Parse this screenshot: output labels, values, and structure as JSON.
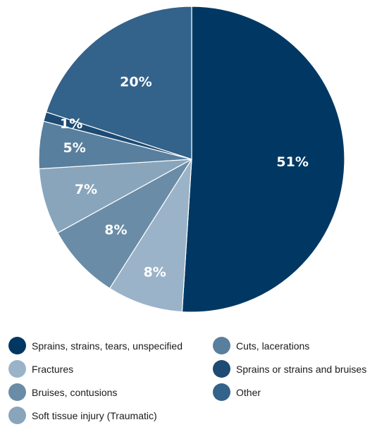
{
  "chart_data": {
    "type": "pie",
    "categories": [
      "Sprains, strains, tears, unspecified",
      "Fractures",
      "Bruises, contusions",
      "Soft tissue injury (Traumatic)",
      "Cuts, lacerations",
      "Sprains or strains and bruises",
      "Other"
    ],
    "values": [
      51,
      8,
      8,
      7,
      5,
      1,
      20
    ],
    "data_labels": [
      "51%",
      "8%",
      "8%",
      "7%",
      "5%",
      "1%",
      "20%"
    ],
    "colors": [
      "#003863",
      "#9ab3c8",
      "#6a8ca6",
      "#89a5bc",
      "#587f9e",
      "#1d4b73",
      "#33628a"
    ],
    "start": "12 o'clock",
    "direction": "clockwise",
    "legend_position": "bottom",
    "title": ""
  }
}
